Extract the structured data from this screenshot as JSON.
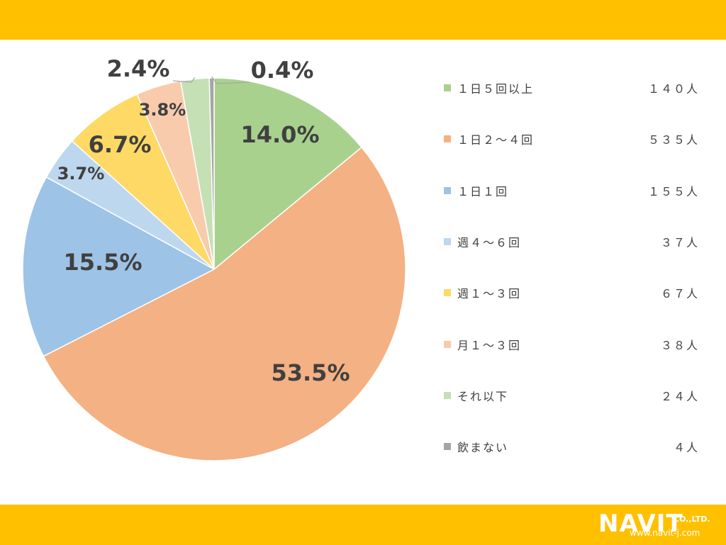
{
  "chart_data": {
    "type": "pie",
    "categories": [
      "１日５回以上",
      "１日２～４回",
      "１日１回",
      "週４～６回",
      "週１～３回",
      "月１～３回",
      "それ以下",
      "飲まない"
    ],
    "values": [
      14.0,
      53.5,
      15.5,
      3.7,
      6.7,
      3.8,
      2.4,
      0.4
    ],
    "data_labels": [
      "14.0%",
      "53.5%",
      "15.5%",
      "3.7%",
      "6.7%",
      "3.8%",
      "2.4%",
      "0.4%"
    ],
    "counts": [
      "１４０人",
      "５３５人",
      "１５５人",
      "３７人",
      "６７人",
      "３８人",
      "２４人",
      "４人"
    ],
    "colors": [
      "#a9d18e",
      "#f4b183",
      "#9dc3e6",
      "#bdd7ee",
      "#ffd966",
      "#f8cbad",
      "#c5e0b4",
      "#a5a5a5"
    ],
    "legend_position": "right",
    "start_angle": "top",
    "direction": "clockwise"
  },
  "theme": {
    "band_color": "#ffc000"
  },
  "logo": {
    "word": "NAVIT",
    "suffix": "CO.,LTD.",
    "url": "www.navit-j.com"
  }
}
